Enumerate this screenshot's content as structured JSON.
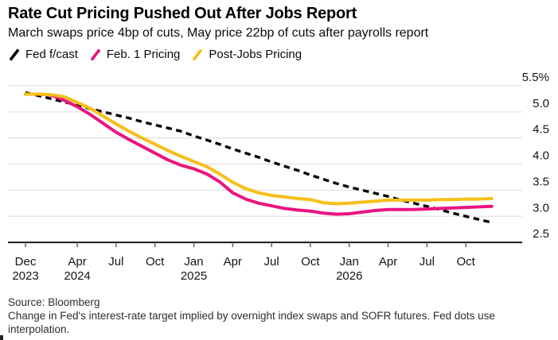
{
  "header": {
    "title": "Rate Cut Pricing Pushed Out After Jobs Report",
    "subtitle": "March swaps price 4bp of cuts, May price 22bp of cuts after payrolls report"
  },
  "legend": [
    {
      "label": "Fed f/cast",
      "color": "#000000",
      "icon": "slash-icon"
    },
    {
      "label": "Feb. 1 Pricing",
      "color": "#e9157f",
      "icon": "slash-icon"
    },
    {
      "label": "Post-Jobs Pricing",
      "color": "#f7bf17",
      "icon": "slash-icon"
    }
  ],
  "chart_data": {
    "type": "line",
    "title": "Rate Cut Pricing Pushed Out After Jobs Report",
    "x_unit": "months since Dec 2023, monthly points Dec 2023 - Dec 2026",
    "x_ticks": [
      {
        "label": "Dec",
        "year": "2023",
        "m": 0
      },
      {
        "label": "Apr",
        "year": "2024",
        "m": 4
      },
      {
        "label": "Jul",
        "m": 7
      },
      {
        "label": "Oct",
        "m": 10
      },
      {
        "label": "Jan",
        "year": "2025",
        "m": 13
      },
      {
        "label": "Apr",
        "m": 16
      },
      {
        "label": "Jul",
        "m": 19
      },
      {
        "label": "Oct",
        "m": 22
      },
      {
        "label": "Jan",
        "year": "2026",
        "m": 25
      },
      {
        "label": "Apr",
        "m": 28
      },
      {
        "label": "Jul",
        "m": 31
      },
      {
        "label": "Oct",
        "m": 34
      }
    ],
    "y_ticks": {
      "labels": [
        "5.5%",
        "5.0",
        "4.5",
        "4.0",
        "3.5",
        "3.0",
        "2.5"
      ],
      "values": [
        5.5,
        5.0,
        4.5,
        4.0,
        3.5,
        3.0,
        2.5
      ]
    },
    "ylim": [
      2.5,
      5.5
    ],
    "grid": "horizontal",
    "legend_position": "top-left",
    "series": [
      {
        "name": "Fed f/cast",
        "style": "dashed",
        "color": "#000000",
        "values": [
          5.37,
          5.31,
          5.25,
          5.19,
          5.13,
          5.06,
          5.0,
          4.94,
          4.88,
          4.81,
          4.75,
          4.69,
          4.63,
          4.54,
          4.46,
          4.38,
          4.29,
          4.21,
          4.13,
          4.04,
          3.96,
          3.88,
          3.79,
          3.71,
          3.63,
          3.56,
          3.5,
          3.44,
          3.38,
          3.31,
          3.25,
          3.19,
          3.13,
          3.06,
          3.0,
          2.94,
          2.88
        ]
      },
      {
        "name": "Feb. 1 Pricing",
        "style": "solid",
        "color": "#e9157f",
        "values": [
          5.34,
          5.34,
          5.32,
          5.22,
          5.1,
          4.95,
          4.78,
          4.61,
          4.47,
          4.34,
          4.21,
          4.08,
          3.98,
          3.91,
          3.81,
          3.66,
          3.45,
          3.33,
          3.25,
          3.2,
          3.15,
          3.12,
          3.1,
          3.06,
          3.04,
          3.05,
          3.08,
          3.11,
          3.13,
          3.13,
          3.13,
          3.14,
          3.15,
          3.16,
          3.17,
          3.18,
          3.19
        ]
      },
      {
        "name": "Post-Jobs Pricing",
        "style": "solid",
        "color": "#f7bf17",
        "values": [
          5.34,
          5.34,
          5.33,
          5.29,
          5.18,
          5.07,
          4.92,
          4.77,
          4.63,
          4.5,
          4.38,
          4.26,
          4.15,
          4.05,
          3.95,
          3.81,
          3.65,
          3.53,
          3.45,
          3.4,
          3.37,
          3.34,
          3.32,
          3.26,
          3.24,
          3.25,
          3.27,
          3.29,
          3.31,
          3.31,
          3.31,
          3.31,
          3.32,
          3.32,
          3.33,
          3.33,
          3.34
        ]
      }
    ]
  },
  "footer": {
    "source": "Source: Bloomberg",
    "note": "Change in Fed's interest-rate target implied by overnight index swaps and SOFR futures. Fed dots use interpolation."
  }
}
